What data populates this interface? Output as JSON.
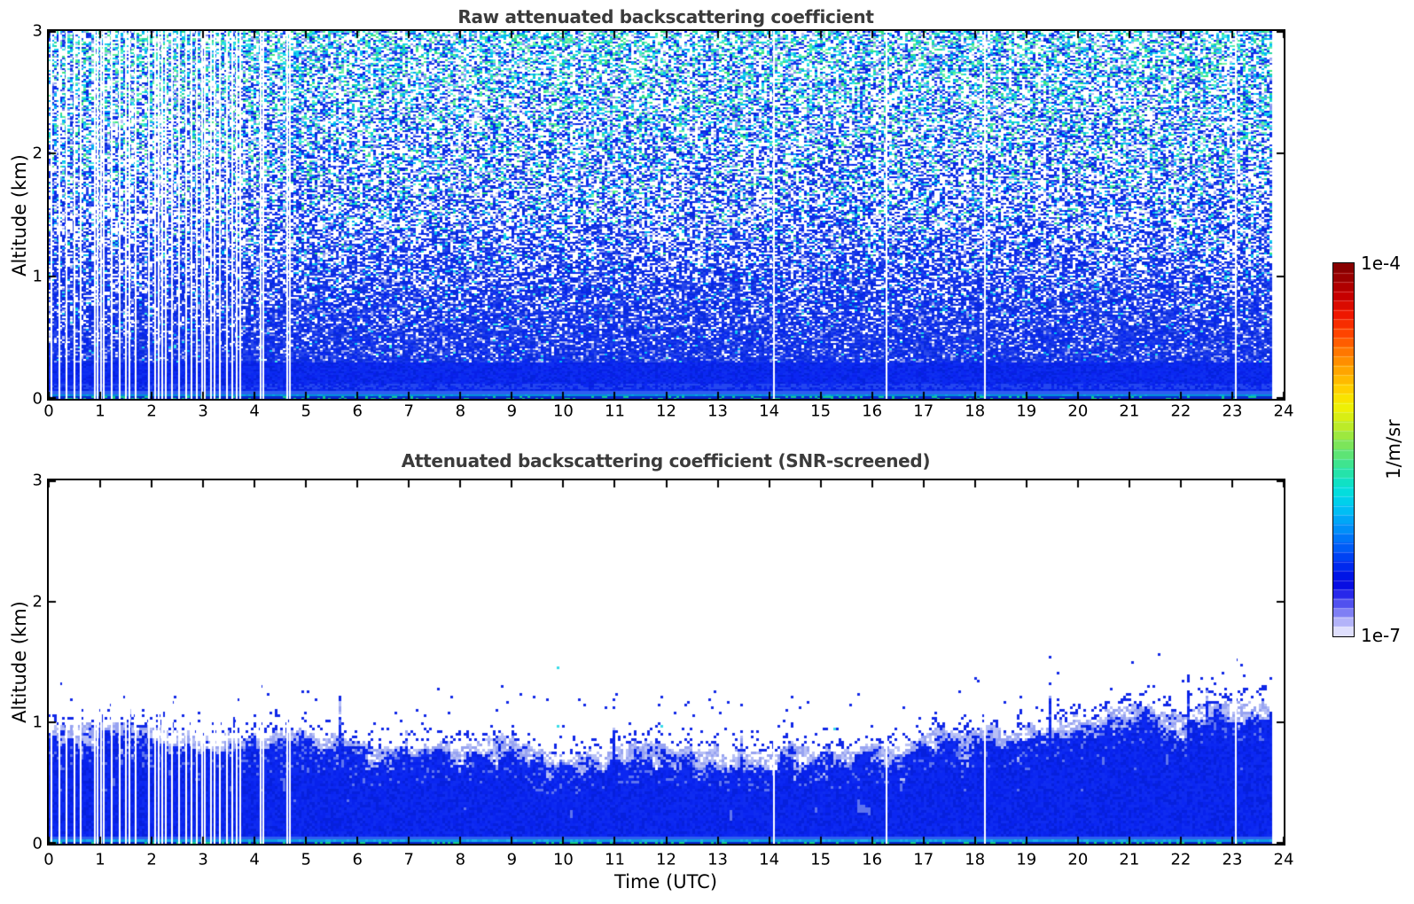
{
  "figure": {
    "background": "#ffffff",
    "title_color": "#3b3b3b",
    "axis_color": "#000000"
  },
  "colorbar": {
    "label_top": "1e-4",
    "label_bottom": "1e-7",
    "unit_label": "1/m/sr",
    "n_segments": 40,
    "colormap": "jet fading to white at low end",
    "stops": [
      [
        0.0,
        "#800000"
      ],
      [
        0.04,
        "#9b0000"
      ],
      [
        0.09,
        "#c80000"
      ],
      [
        0.14,
        "#f01800"
      ],
      [
        0.19,
        "#ff4600"
      ],
      [
        0.24,
        "#ff7a00"
      ],
      [
        0.29,
        "#ffa700"
      ],
      [
        0.34,
        "#ffd200"
      ],
      [
        0.38,
        "#f5f000"
      ],
      [
        0.42,
        "#d2ee18"
      ],
      [
        0.46,
        "#a0e83c"
      ],
      [
        0.5,
        "#6ce468"
      ],
      [
        0.54,
        "#3ce492"
      ],
      [
        0.58,
        "#14e2bc"
      ],
      [
        0.62,
        "#00dce4"
      ],
      [
        0.66,
        "#00c0f4"
      ],
      [
        0.7,
        "#009cf8"
      ],
      [
        0.74,
        "#0074f8"
      ],
      [
        0.78,
        "#004af4"
      ],
      [
        0.82,
        "#0022ec"
      ],
      [
        0.855,
        "#0008e0"
      ],
      [
        0.88,
        "#1c1ce8"
      ],
      [
        0.91,
        "#4c4cee"
      ],
      [
        0.94,
        "#8484f4"
      ],
      [
        0.97,
        "#c2c2fa"
      ],
      [
        1.0,
        "#f4f4ff"
      ]
    ]
  },
  "chart_data": [
    {
      "type": "heatmap",
      "title": "Raw attenuated backscattering coefficient",
      "xlabel": "",
      "ylabel": "Altitude (km)",
      "xlim": [
        0,
        24
      ],
      "ylim": [
        0,
        3
      ],
      "x_ticks": [
        0,
        1,
        2,
        3,
        4,
        5,
        6,
        7,
        8,
        9,
        10,
        11,
        12,
        13,
        14,
        15,
        16,
        17,
        18,
        19,
        20,
        21,
        22,
        23,
        24
      ],
      "y_ticks": [
        0,
        1,
        2,
        3
      ],
      "value_max": "1e-4",
      "value_min": "1e-7",
      "units": "1/m/sr",
      "data_end_hour": 23.78,
      "gap_hours": [
        0.06,
        0.2,
        0.34,
        0.5,
        0.62,
        0.9,
        0.95,
        1.02,
        1.07,
        1.22,
        1.37,
        1.5,
        1.56,
        1.69,
        1.95,
        2.06,
        2.13,
        2.2,
        2.27,
        2.4,
        2.54,
        2.67,
        2.78,
        2.87,
        2.98,
        3.04,
        3.15,
        3.22,
        3.33,
        3.46,
        3.56,
        3.65,
        3.73,
        4.11,
        4.17,
        4.63,
        4.68,
        14.1,
        16.28,
        18.2,
        23.07
      ],
      "structure": {
        "solid_signal_below_km": 0.3,
        "noise_to_top_km": 3.0,
        "white_fraction_at_top": 0.4,
        "description": "Dense solid blue aerosol return below ~0.35 km with cyan-tinged surface layer; uncorrected random noise speckle (blue, pale blue, cyan, green on white) growing with altitude up to 3 km."
      },
      "speckle_palette": {
        "blue": [
          "#0726ee",
          "#1535ec",
          "#2747ea",
          "#0a2cd8"
        ],
        "pale_blue": [
          "#96a4f2",
          "#b8c2f6",
          "#8593ee"
        ],
        "cyan": [
          "#17d2ea",
          "#00bef2",
          "#3fe9e2",
          "#00a8f4"
        ],
        "green": [
          "#3be47e",
          "#55ec96",
          "#23da9e",
          "#6ff2a8"
        ],
        "solid_blue": [
          "#0820e8",
          "#0b26f2",
          "#1030f0",
          "#0422dc",
          "#0a2af0"
        ]
      }
    },
    {
      "type": "heatmap",
      "title": "Attenuated backscattering coefficient (SNR-screened)",
      "xlabel": "Time (UTC)",
      "ylabel": "Altitude (km)",
      "xlim": [
        0,
        24
      ],
      "ylim": [
        0,
        3
      ],
      "x_ticks": [
        0,
        1,
        2,
        3,
        4,
        5,
        6,
        7,
        8,
        9,
        10,
        11,
        12,
        13,
        14,
        15,
        16,
        17,
        18,
        19,
        20,
        21,
        22,
        23,
        24
      ],
      "y_ticks": [
        0,
        1,
        2,
        3
      ],
      "value_max": "1e-4",
      "value_min": "1e-7",
      "units": "1/m/sr",
      "data_end_hour": 23.78,
      "gap_hours": [
        0.06,
        0.2,
        0.34,
        0.5,
        0.62,
        0.9,
        0.95,
        1.02,
        1.07,
        1.22,
        1.37,
        1.5,
        1.56,
        1.69,
        1.95,
        2.06,
        2.13,
        2.2,
        2.27,
        2.4,
        2.54,
        2.67,
        2.78,
        2.87,
        2.98,
        3.04,
        3.15,
        3.22,
        3.33,
        3.46,
        3.56,
        3.65,
        3.73,
        4.11,
        4.17,
        4.63,
        4.68,
        14.1,
        16.28,
        18.2,
        23.07
      ],
      "boundary_top_km_by_hour": [
        1.02,
        1.0,
        1.03,
        1.0,
        0.96,
        0.9,
        0.9,
        0.88,
        0.9,
        0.88,
        0.86,
        0.88,
        0.86,
        0.9,
        0.88,
        0.9,
        0.88,
        0.92,
        0.95,
        1.0,
        1.02,
        1.05,
        1.02,
        1.06,
        1.05
      ],
      "structure": {
        "max_speck_altitude_km": 1.4,
        "description": "After SNR screening only the boundary layer remains: solid blue below a ragged ~0.85-1.05 km top with pale-blue mottled transition, sparse blue specks up to ~1.4 km, white (no data) above."
      },
      "speckle_palette": {
        "solid_blue": [
          "#0822ec",
          "#0b27f2",
          "#0f2cf0",
          "#0620dc"
        ],
        "pale_blue": [
          "#97a3f1",
          "#b7c0f6"
        ],
        "light_patch": "#5e74ee",
        "speck": "#1028e8",
        "rare_cyan": "#38dce8"
      }
    }
  ]
}
